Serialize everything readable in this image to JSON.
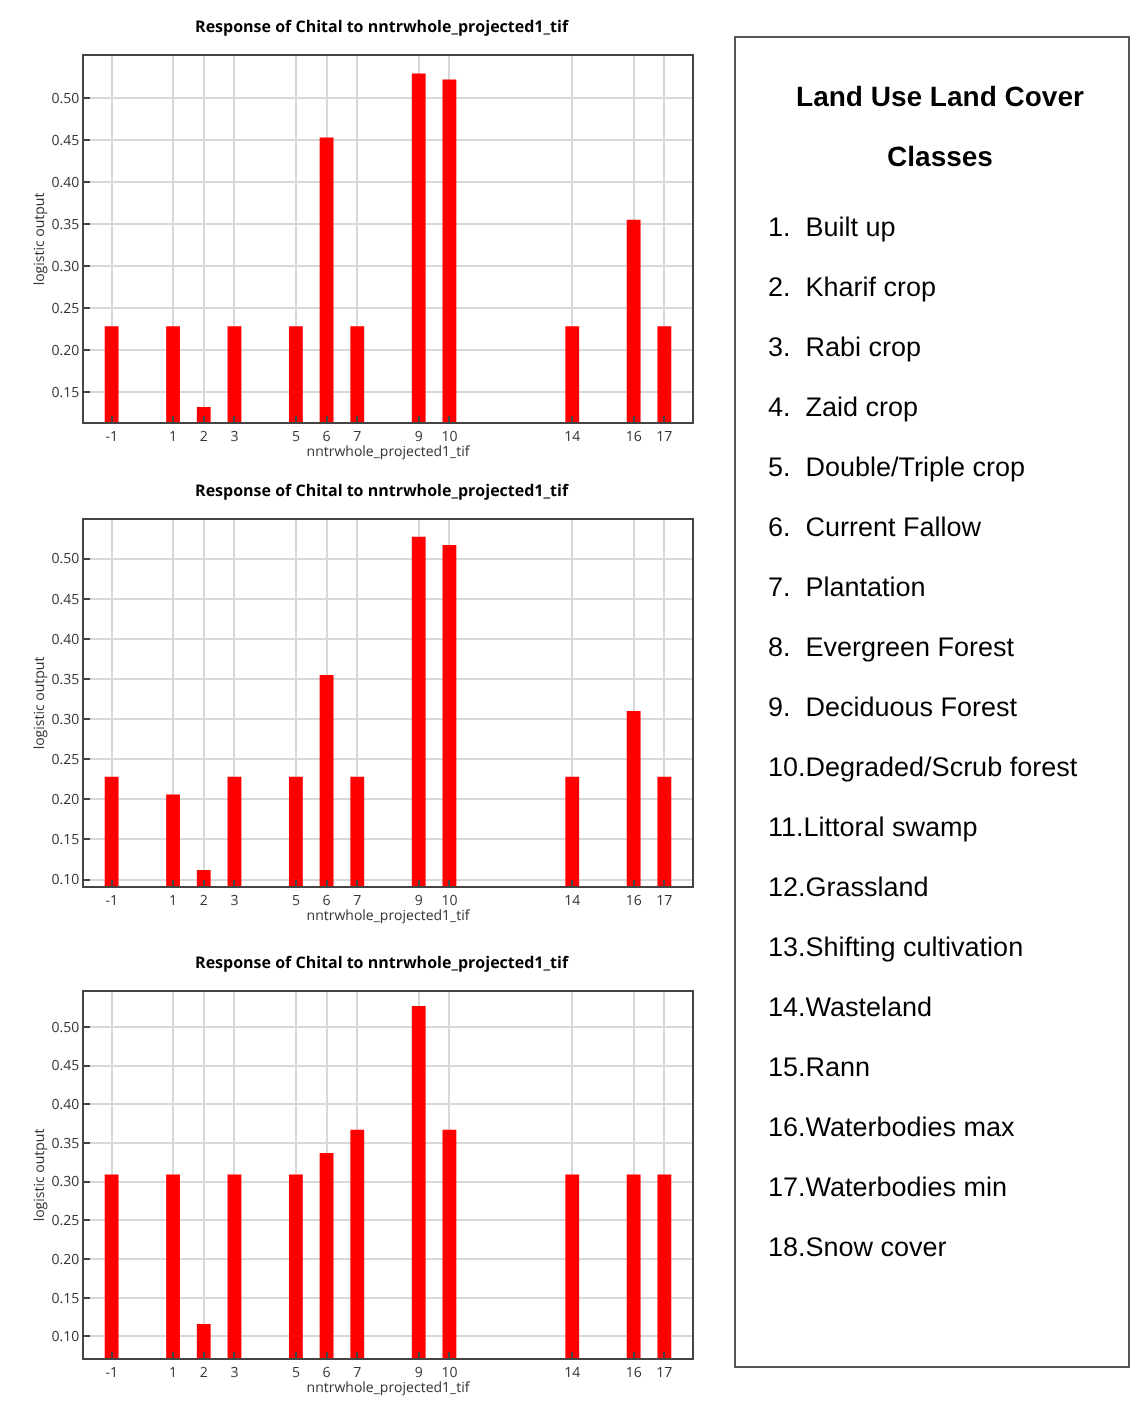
{
  "chart_data": [
    {
      "type": "bar",
      "title": "Response of Chital to nntrwhole_projected1_tif",
      "xlabel": "nntrwhole_projected1_tif",
      "ylabel": "logistic output",
      "x": [
        -1,
        1,
        2,
        3,
        5,
        6,
        7,
        9,
        10,
        14,
        16,
        17
      ],
      "values": [
        0.228,
        0.228,
        0.132,
        0.228,
        0.228,
        0.453,
        0.228,
        0.529,
        0.522,
        0.228,
        0.355,
        0.228
      ],
      "color": "#ff0000",
      "xlim": [
        -1.9,
        17.9
      ],
      "xticks": [
        -1,
        1,
        2,
        3,
        5,
        6,
        7,
        9,
        10,
        14,
        16,
        17
      ],
      "ylim": [
        0.114,
        0.55
      ],
      "yticks": [
        {
          "value": 0.15,
          "label": "0.15"
        },
        {
          "value": 0.2,
          "label": "0.20"
        },
        {
          "value": 0.25,
          "label": "0.25"
        },
        {
          "value": 0.3,
          "label": "0.30"
        },
        {
          "value": 0.35,
          "label": "0.35"
        },
        {
          "value": 0.4,
          "label": "0.40"
        },
        {
          "value": 0.45,
          "label": "0.45"
        },
        {
          "value": 0.5,
          "label": "0.50"
        }
      ],
      "grid": true
    },
    {
      "type": "bar",
      "title": "Response of Chital to nntrwhole_projected1_tif",
      "xlabel": "nntrwhole_projected1_tif",
      "ylabel": "logistic output",
      "x": [
        -1,
        1,
        2,
        3,
        5,
        6,
        7,
        9,
        10,
        14,
        16,
        17
      ],
      "values": [
        0.228,
        0.206,
        0.112,
        0.228,
        0.228,
        0.355,
        0.228,
        0.527,
        0.517,
        0.228,
        0.31,
        0.228
      ],
      "color": "#ff0000",
      "xlim": [
        -1.9,
        17.9
      ],
      "xticks": [
        -1,
        1,
        2,
        3,
        5,
        6,
        7,
        9,
        10,
        14,
        16,
        17
      ],
      "ylim": [
        0.092,
        0.548
      ],
      "yticks": [
        {
          "value": 0.1,
          "label": "0.10"
        },
        {
          "value": 0.15,
          "label": "0.15"
        },
        {
          "value": 0.2,
          "label": "0.20"
        },
        {
          "value": 0.25,
          "label": "0.25"
        },
        {
          "value": 0.3,
          "label": "0.30"
        },
        {
          "value": 0.35,
          "label": "0.35"
        },
        {
          "value": 0.4,
          "label": "0.40"
        },
        {
          "value": 0.45,
          "label": "0.45"
        },
        {
          "value": 0.5,
          "label": "0.50"
        }
      ],
      "grid": true
    },
    {
      "type": "bar",
      "title": "Response of Chital to nntrwhole_projected1_tif",
      "xlabel": "nntrwhole_projected1_tif",
      "ylabel": "logistic output",
      "x": [
        -1,
        1,
        2,
        3,
        5,
        6,
        7,
        9,
        10,
        14,
        16,
        17
      ],
      "values": [
        0.309,
        0.309,
        0.116,
        0.309,
        0.309,
        0.337,
        0.367,
        0.527,
        0.367,
        0.309,
        0.309,
        0.309
      ],
      "color": "#ff0000",
      "xlim": [
        -1.9,
        17.9
      ],
      "xticks": [
        -1,
        1,
        2,
        3,
        5,
        6,
        7,
        9,
        10,
        14,
        16,
        17
      ],
      "ylim": [
        0.072,
        0.545
      ],
      "yticks": [
        {
          "value": 0.1,
          "label": "0.10"
        },
        {
          "value": 0.15,
          "label": "0.15"
        },
        {
          "value": 0.2,
          "label": "0.20"
        },
        {
          "value": 0.25,
          "label": "0.25"
        },
        {
          "value": 0.3,
          "label": "0.30"
        },
        {
          "value": 0.35,
          "label": "0.35"
        },
        {
          "value": 0.4,
          "label": "0.40"
        },
        {
          "value": 0.45,
          "label": "0.45"
        },
        {
          "value": 0.5,
          "label": "0.50"
        }
      ],
      "grid": true
    },
    {
      "type": "other",
      "title": "Land Use Land Cover Classes",
      "annotations": [
        "1.  Built up",
        "2.  Kharif crop",
        "3.  Rabi crop",
        "4.  Zaid crop",
        "5.  Double/Triple crop",
        "6.  Current Fallow",
        "7.  Plantation",
        "8.  Evergreen Forest",
        "9.  Deciduous Forest",
        "10.Degraded/Scrub forest",
        "11.Littoral swamp",
        "12.Grassland",
        "13.Shifting cultivation",
        "14.Wasteland",
        "15.Rann",
        "16.Waterbodies max",
        "17.Waterbodies min",
        "18.Snow cover"
      ]
    }
  ]
}
